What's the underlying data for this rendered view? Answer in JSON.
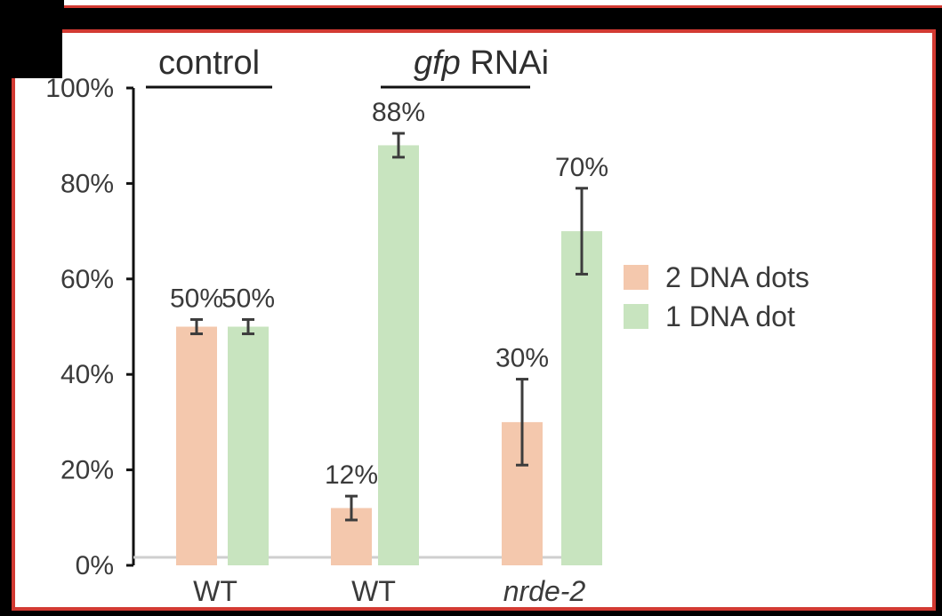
{
  "chart_data": {
    "type": "bar",
    "ylim": [
      0,
      100
    ],
    "yticks": [
      "0%",
      "20%",
      "40%",
      "60%",
      "80%",
      "100%"
    ],
    "groups": [
      {
        "label": "control",
        "label_prefix_italic": "",
        "label_rest": "control",
        "categories": [
          0
        ]
      },
      {
        "label": "gfp RNAi",
        "label_prefix_italic": "gfp",
        "label_rest": " RNAi",
        "categories": [
          1,
          2
        ]
      }
    ],
    "categories": [
      {
        "label": "WT",
        "italic": false
      },
      {
        "label": "WT",
        "italic": false
      },
      {
        "label": "nrde-2",
        "italic": true
      }
    ],
    "series": [
      {
        "name": "2 DNA dots",
        "color": "#f4c8ad",
        "values": [
          50,
          12,
          30
        ],
        "errors": [
          1.5,
          2.5,
          9
        ],
        "labels": [
          "50%",
          "12%",
          "30%"
        ]
      },
      {
        "name": "1 DNA dot",
        "color": "#c8e4bf",
        "values": [
          50,
          88,
          70
        ],
        "errors": [
          1.5,
          2.5,
          9
        ],
        "labels": [
          "50%",
          "88%",
          "70%"
        ]
      }
    ],
    "legend_position": "right",
    "grid": false
  }
}
